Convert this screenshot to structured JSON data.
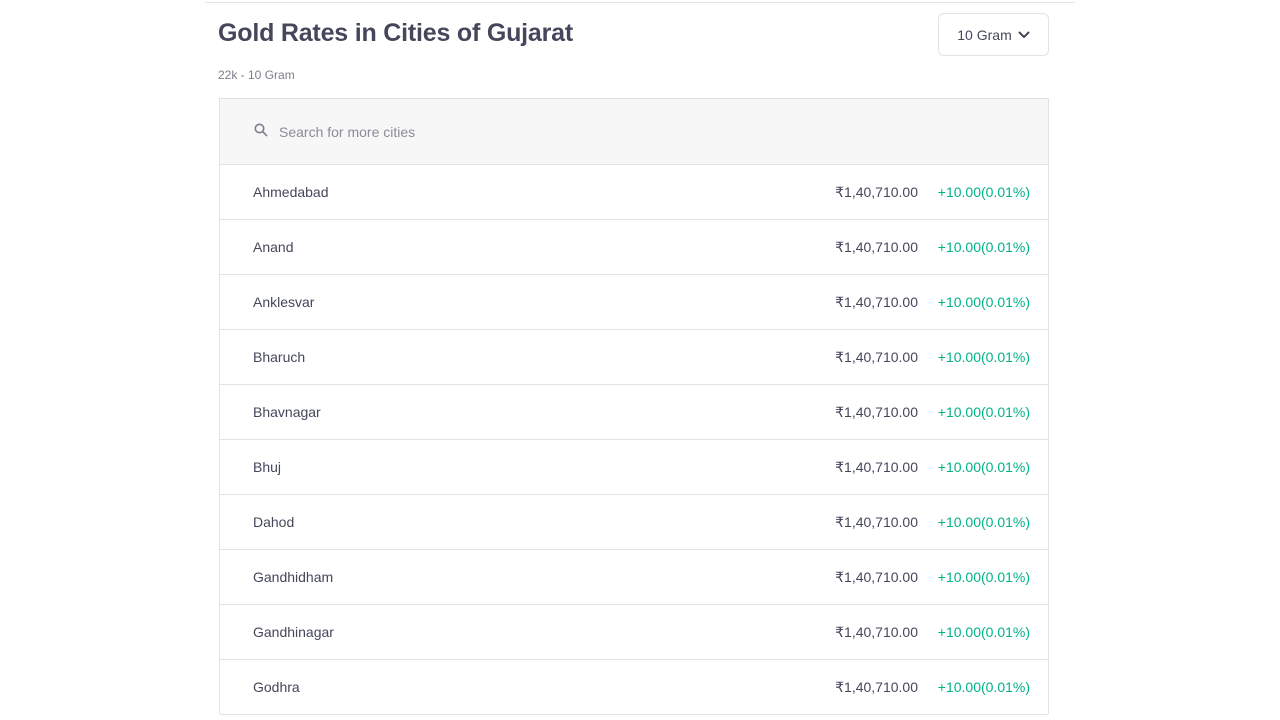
{
  "header": {
    "title": "Gold Rates in Cities of Gujarat",
    "subtitle": "22k - 10 Gram"
  },
  "unit_selector": {
    "selected": "10 Gram",
    "icon": "chevron-down-icon"
  },
  "search": {
    "placeholder": "Search for more cities",
    "value": "",
    "icon": "search-icon"
  },
  "colors": {
    "positive_change": "#00b386",
    "text": "#44475b",
    "border": "#e3e3e3",
    "search_background": "#f7f7f7"
  },
  "rates": [
    {
      "city": "Ahmedabad",
      "price": "₹1,40,710.00",
      "change": "+10.00(0.01%)"
    },
    {
      "city": "Anand",
      "price": "₹1,40,710.00",
      "change": "+10.00(0.01%)"
    },
    {
      "city": "Anklesvar",
      "price": "₹1,40,710.00",
      "change": "+10.00(0.01%)"
    },
    {
      "city": "Bharuch",
      "price": "₹1,40,710.00",
      "change": "+10.00(0.01%)"
    },
    {
      "city": "Bhavnagar",
      "price": "₹1,40,710.00",
      "change": "+10.00(0.01%)"
    },
    {
      "city": "Bhuj",
      "price": "₹1,40,710.00",
      "change": "+10.00(0.01%)"
    },
    {
      "city": "Dahod",
      "price": "₹1,40,710.00",
      "change": "+10.00(0.01%)"
    },
    {
      "city": "Gandhidham",
      "price": "₹1,40,710.00",
      "change": "+10.00(0.01%)"
    },
    {
      "city": "Gandhinagar",
      "price": "₹1,40,710.00",
      "change": "+10.00(0.01%)"
    },
    {
      "city": "Godhra",
      "price": "₹1,40,710.00",
      "change": "+10.00(0.01%)"
    }
  ]
}
